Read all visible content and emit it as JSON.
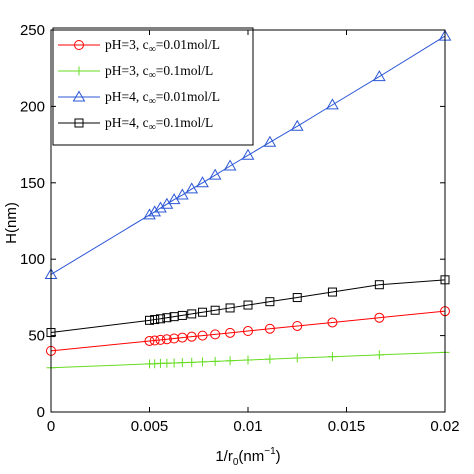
{
  "chart_data": {
    "type": "line",
    "title": "",
    "xlabel": "1/r",
    "xlabel_sub": "0",
    "xlabel_unit": "(nm",
    "xlabel_sup": "−1",
    "xlabel_close": ")",
    "ylabel": "H(nm)",
    "xlim": [
      0,
      0.02
    ],
    "ylim": [
      0,
      250
    ],
    "xticks": [
      0,
      0.005,
      0.01,
      0.015,
      0.02
    ],
    "xtick_labels": [
      "0",
      "0.005",
      "0.01",
      "0.015",
      "0.02"
    ],
    "yticks": [
      0,
      50,
      100,
      150,
      200,
      250
    ],
    "ytick_labels": [
      "0",
      "50",
      "100",
      "150",
      "200",
      "250"
    ],
    "grid": false,
    "legend_position": "top-left",
    "x": [
      0,
      0.005,
      0.005263,
      0.005556,
      0.005882,
      0.00625,
      0.006667,
      0.007143,
      0.007692,
      0.008333,
      0.009091,
      0.01,
      0.011111,
      0.0125,
      0.014286,
      0.016667,
      0.02
    ],
    "series": [
      {
        "name": "pH=3, c∞=0.01mol/L",
        "legend_prefix": "pH=3, c",
        "legend_sub": "∞",
        "legend_suffix": "=0.01mol/L",
        "color": "#ff0000",
        "marker": "circle",
        "values": [
          40,
          46.5,
          46.8,
          47.2,
          47.6,
          48.1,
          48.7,
          49.3,
          50.0,
          50.8,
          51.8,
          53.0,
          54.5,
          56.3,
          58.6,
          61.7,
          66.0
        ]
      },
      {
        "name": "pH=3, c∞=0.1mol/L",
        "legend_prefix": "pH=3, c",
        "legend_sub": "∞",
        "legend_suffix": "=0.1mol/L",
        "color": "#66dd22",
        "marker": "plus",
        "values": [
          29,
          31.5,
          31.6,
          31.8,
          31.9,
          32.1,
          32.3,
          32.5,
          32.8,
          33.1,
          33.5,
          34.0,
          34.6,
          35.3,
          36.2,
          37.4,
          39.0
        ]
      },
      {
        "name": "pH=4, c∞=0.01mol/L",
        "legend_prefix": "pH=4, c",
        "legend_sub": "∞",
        "legend_suffix": "=0.01mol/L",
        "color": "#2b57d6",
        "marker": "triangle",
        "values": [
          90,
          129,
          131,
          133.5,
          136,
          139,
          142,
          146,
          150,
          155,
          161,
          168,
          176.5,
          187,
          201,
          219.5,
          246
        ]
      },
      {
        "name": "pH=4, c∞=0.1mol/L",
        "legend_prefix": "pH=4, c",
        "legend_sub": "∞",
        "legend_suffix": "=0.1mol/L",
        "color": "#000000",
        "marker": "square",
        "values": [
          52,
          60,
          60.5,
          61,
          61.7,
          62.4,
          63.2,
          64.2,
          65.3,
          66.6,
          68.1,
          70,
          72.2,
          74.9,
          78.5,
          83.3,
          86.5
        ]
      }
    ]
  }
}
